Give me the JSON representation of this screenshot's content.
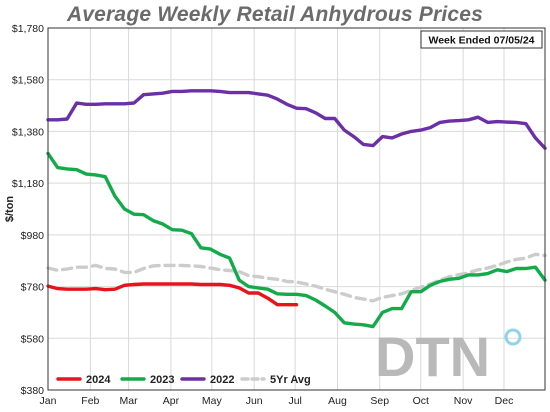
{
  "chart_data": {
    "type": "line",
    "title": "Average Weekly Retail Anhydrous Prices",
    "ylabel": "$/ton",
    "xlabel": "",
    "ylim": [
      380,
      1780
    ],
    "xlim": [
      0,
      52
    ],
    "yticks": [
      380,
      580,
      780,
      980,
      1180,
      1380,
      1580,
      1780
    ],
    "ytick_labels": [
      "$380",
      "$580",
      "$780",
      "$980",
      "$1,180",
      "$1,380",
      "$1,580",
      "$1,780"
    ],
    "xticks": [
      0,
      4.43,
      8.43,
      12.86,
      17.14,
      21.57,
      25.86,
      30.29,
      34.71,
      39.0,
      43.43,
      47.71
    ],
    "xtick_labels": [
      "Jan",
      "Feb",
      "Mar",
      "Apr",
      "May",
      "Jun",
      "Jul",
      "Aug",
      "Sep",
      "Oct",
      "Nov",
      "Dec"
    ],
    "annotation": "Week Ended 07/05/24",
    "legend_position": "bottom-left",
    "grid": true,
    "series": [
      {
        "name": "2024",
        "color": "#e8141b",
        "dash": false,
        "x": [
          0,
          1,
          2,
          3,
          4,
          5,
          6,
          7,
          8,
          9,
          10,
          11,
          12,
          13,
          14,
          15,
          16,
          17,
          18,
          19,
          20,
          21,
          22,
          23,
          24,
          25,
          26
        ],
        "y": [
          782,
          772,
          770,
          770,
          770,
          772,
          768,
          770,
          785,
          788,
          790,
          790,
          790,
          790,
          790,
          790,
          788,
          788,
          788,
          785,
          775,
          755,
          755,
          735,
          710,
          710,
          710
        ]
      },
      {
        "name": "2023",
        "color": "#13ab4a",
        "dash": false,
        "x": [
          0,
          1,
          2,
          3,
          4,
          5,
          6,
          7,
          8,
          9,
          10,
          11,
          12,
          13,
          14,
          15,
          16,
          17,
          18,
          19,
          20,
          21,
          22,
          23,
          24,
          25,
          26,
          27,
          28,
          29,
          30,
          31,
          32,
          33,
          34,
          35,
          36,
          37,
          38,
          39,
          40,
          41,
          42,
          43,
          44,
          45,
          46,
          47,
          48,
          49,
          50,
          51,
          52
        ],
        "y": [
          1295,
          1240,
          1235,
          1232,
          1215,
          1212,
          1205,
          1130,
          1080,
          1060,
          1058,
          1035,
          1022,
          1000,
          998,
          985,
          930,
          925,
          905,
          890,
          805,
          780,
          775,
          770,
          752,
          750,
          750,
          745,
          728,
          705,
          680,
          640,
          635,
          632,
          625,
          680,
          695,
          695,
          760,
          760,
          785,
          800,
          808,
          812,
          825,
          825,
          830,
          845,
          838,
          850,
          850,
          855,
          805
        ]
      },
      {
        "name": "2022",
        "color": "#6b2fa6",
        "dash": false,
        "x": [
          0,
          1,
          2,
          3,
          4,
          5,
          6,
          7,
          8,
          9,
          10,
          11,
          12,
          13,
          14,
          15,
          16,
          17,
          18,
          19,
          20,
          21,
          22,
          23,
          24,
          25,
          26,
          27,
          28,
          29,
          30,
          31,
          32,
          33,
          34,
          35,
          36,
          37,
          38,
          39,
          40,
          41,
          42,
          43,
          44,
          45,
          46,
          47,
          48,
          49,
          50,
          51,
          52
        ],
        "y": [
          1425,
          1425,
          1428,
          1490,
          1485,
          1485,
          1487,
          1487,
          1487,
          1490,
          1522,
          1525,
          1528,
          1535,
          1535,
          1537,
          1537,
          1537,
          1535,
          1530,
          1530,
          1530,
          1525,
          1520,
          1505,
          1485,
          1470,
          1468,
          1452,
          1430,
          1430,
          1385,
          1360,
          1330,
          1325,
          1360,
          1355,
          1370,
          1380,
          1385,
          1395,
          1415,
          1420,
          1422,
          1425,
          1435,
          1415,
          1418,
          1416,
          1415,
          1410,
          1355,
          1315
        ]
      },
      {
        "name": "5Yr Avg",
        "color": "#cccccc",
        "dash": true,
        "x": [
          0,
          1,
          2,
          3,
          4,
          5,
          6,
          7,
          8,
          9,
          10,
          11,
          12,
          13,
          14,
          15,
          16,
          17,
          18,
          19,
          20,
          21,
          22,
          23,
          24,
          25,
          26,
          27,
          28,
          29,
          30,
          31,
          32,
          33,
          34,
          35,
          36,
          37,
          38,
          39,
          40,
          41,
          42,
          43,
          44,
          45,
          46,
          47,
          48,
          49,
          50,
          51,
          52
        ],
        "y": [
          852,
          843,
          848,
          855,
          855,
          862,
          850,
          848,
          835,
          835,
          850,
          860,
          862,
          862,
          862,
          860,
          858,
          852,
          845,
          842,
          838,
          822,
          818,
          812,
          808,
          800,
          798,
          790,
          782,
          770,
          760,
          750,
          738,
          732,
          725,
          738,
          745,
          752,
          765,
          778,
          790,
          805,
          818,
          826,
          833,
          845,
          852,
          862,
          875,
          885,
          890,
          905,
          900
        ]
      }
    ]
  },
  "logo_text": "DTN"
}
